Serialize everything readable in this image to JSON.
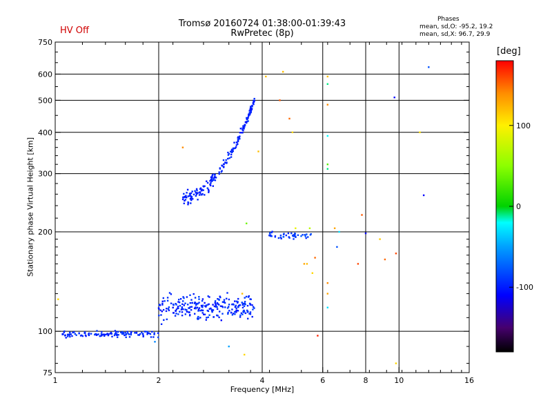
{
  "header": {
    "status": "HV Off",
    "title_line1": "Tromsø 20160724 01:38:00-01:39:43",
    "title_line2": "RwPretec (8p)",
    "phases_label": "Phases",
    "stat_line1": "mean, sd,O: -95.2, 19.2",
    "stat_line2": "mean, sd,X:  96.7, 29.9"
  },
  "colorbar": {
    "unit": "[deg]",
    "ticks": [
      100,
      0,
      -100
    ],
    "range": [
      -180,
      180
    ]
  },
  "chart_data": {
    "type": "scatter",
    "xlabel": "Frequency [MHz]",
    "ylabel": "Stationary phase Virtual Height [km]",
    "xscale": "log",
    "yscale": "log",
    "xlim": [
      1,
      16
    ],
    "ylim": [
      75,
      750
    ],
    "xticks": [
      1,
      2,
      4,
      6,
      8,
      10,
      16
    ],
    "yticks": [
      75,
      100,
      200,
      300,
      400,
      500,
      600,
      750
    ],
    "vgrid": [
      2,
      4,
      6,
      8,
      10
    ],
    "hgrid": [
      100,
      200,
      300,
      400,
      500,
      600
    ],
    "series": [
      {
        "freq_range": [
          1.05,
          2.0
        ],
        "height_center": 98,
        "height_spread": 3,
        "count": 120,
        "phase_mean": -95,
        "phase_sd": 10
      },
      {
        "freq_range": [
          2.0,
          3.8
        ],
        "height_center": 118,
        "height_spread": 15,
        "count": 260,
        "phase_mean": -95,
        "phase_sd": 20
      },
      {
        "freq_range": [
          2.35,
          3.8
        ],
        "height_start": 255,
        "height_end": 500,
        "height_spread": 18,
        "count": 200,
        "phase_mean": -98,
        "phase_sd": 12
      },
      {
        "freq_range": [
          4.15,
          5.6
        ],
        "height_center": 195,
        "height_spread": 6,
        "count": 45,
        "phase_mean": -90,
        "phase_sd": 20
      }
    ],
    "scatter_points": [
      {
        "f": 1.02,
        "h": 125,
        "p": 110
      },
      {
        "f": 1.95,
        "h": 93,
        "p": -60
      },
      {
        "f": 2.35,
        "h": 360,
        "p": 140
      },
      {
        "f": 3.2,
        "h": 90,
        "p": -50
      },
      {
        "f": 3.55,
        "h": 85,
        "p": 110
      },
      {
        "f": 3.5,
        "h": 130,
        "p": 120
      },
      {
        "f": 3.6,
        "h": 212,
        "p": 40
      },
      {
        "f": 3.9,
        "h": 350,
        "p": 120
      },
      {
        "f": 4.1,
        "h": 590,
        "p": 120
      },
      {
        "f": 4.5,
        "h": 500,
        "p": 155
      },
      {
        "f": 4.6,
        "h": 610,
        "p": 120
      },
      {
        "f": 4.8,
        "h": 440,
        "p": 150
      },
      {
        "f": 4.9,
        "h": 400,
        "p": 110
      },
      {
        "f": 5.0,
        "h": 205,
        "p": 90
      },
      {
        "f": 5.3,
        "h": 160,
        "p": 130
      },
      {
        "f": 5.4,
        "h": 160,
        "p": 120
      },
      {
        "f": 5.5,
        "h": 205,
        "p": 70
      },
      {
        "f": 5.6,
        "h": 150,
        "p": 110
      },
      {
        "f": 5.7,
        "h": 167,
        "p": 150
      },
      {
        "f": 5.8,
        "h": 97,
        "p": 170
      },
      {
        "f": 6.2,
        "h": 590,
        "p": 120
      },
      {
        "f": 6.2,
        "h": 560,
        "p": -10
      },
      {
        "f": 6.2,
        "h": 485,
        "p": 140
      },
      {
        "f": 6.2,
        "h": 390,
        "p": -20
      },
      {
        "f": 6.2,
        "h": 320,
        "p": 30
      },
      {
        "f": 6.2,
        "h": 310,
        "p": -10
      },
      {
        "f": 6.2,
        "h": 140,
        "p": 140
      },
      {
        "f": 6.2,
        "h": 130,
        "p": 130
      },
      {
        "f": 6.2,
        "h": 118,
        "p": -30
      },
      {
        "f": 6.5,
        "h": 205,
        "p": 130
      },
      {
        "f": 6.7,
        "h": 200,
        "p": -30
      },
      {
        "f": 6.6,
        "h": 180,
        "p": -80
      },
      {
        "f": 7.6,
        "h": 160,
        "p": 160
      },
      {
        "f": 7.8,
        "h": 225,
        "p": 155
      },
      {
        "f": 8.0,
        "h": 198,
        "p": -110
      },
      {
        "f": 8.8,
        "h": 190,
        "p": 115
      },
      {
        "f": 9.1,
        "h": 165,
        "p": 150
      },
      {
        "f": 9.7,
        "h": 510,
        "p": -110
      },
      {
        "f": 9.8,
        "h": 172,
        "p": 160
      },
      {
        "f": 9.8,
        "h": 80,
        "p": 110
      },
      {
        "f": 11.5,
        "h": 400,
        "p": 105
      },
      {
        "f": 11.8,
        "h": 258,
        "p": -110
      },
      {
        "f": 12.2,
        "h": 630,
        "p": -80
      }
    ]
  }
}
